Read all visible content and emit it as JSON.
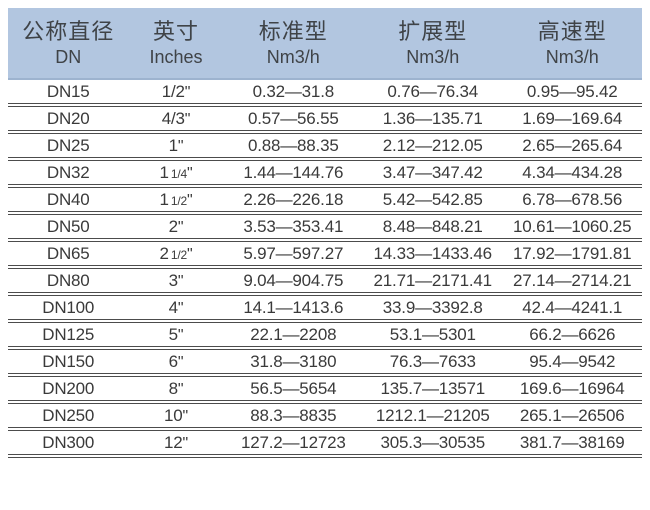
{
  "colors": {
    "header_bg": "#b2c6e0",
    "header_edge": "#9db3cf",
    "header_text": "#3f4347",
    "text": "#3a3a3a",
    "line": "#4c4c4c"
  },
  "table": {
    "inch_mark": "\"",
    "columns": [
      {
        "title": "公称直径",
        "subtitle": "DN"
      },
      {
        "title": "英寸",
        "subtitle": "Inches"
      },
      {
        "title": "标准型",
        "subtitle": "Nm3/h"
      },
      {
        "title": "扩展型",
        "subtitle": "Nm3/h"
      },
      {
        "title": "高速型",
        "subtitle": "Nm3/h"
      }
    ],
    "rows": [
      {
        "dn": "DN15",
        "inches_main": "1/2",
        "inches_frac": "",
        "standard": "0.32—31.8",
        "extended": "0.76—76.34",
        "high_speed": "0.95—95.42"
      },
      {
        "dn": "DN20",
        "inches_main": "4/3",
        "inches_frac": "",
        "standard": "0.57—56.55",
        "extended": "1.36—135.71",
        "high_speed": "1.69—169.64"
      },
      {
        "dn": "DN25",
        "inches_main": "1",
        "inches_frac": "",
        "standard": "0.88—88.35",
        "extended": "2.12—212.05",
        "high_speed": "2.65—265.64"
      },
      {
        "dn": "DN32",
        "inches_main": "1",
        "inches_frac": "1/4",
        "standard": "1.44—144.76",
        "extended": "3.47—347.42",
        "high_speed": "4.34—434.28"
      },
      {
        "dn": "DN40",
        "inches_main": "1",
        "inches_frac": "1/2",
        "standard": "2.26—226.18",
        "extended": "5.42—542.85",
        "high_speed": "6.78—678.56"
      },
      {
        "dn": "DN50",
        "inches_main": "2",
        "inches_frac": "",
        "standard": "3.53—353.41",
        "extended": "8.48—848.21",
        "high_speed": "10.61—1060.25"
      },
      {
        "dn": "DN65",
        "inches_main": "2",
        "inches_frac": "1/2",
        "standard": "5.97—597.27",
        "extended": "14.33—1433.46",
        "high_speed": "17.92—1791.81"
      },
      {
        "dn": "DN80",
        "inches_main": "3",
        "inches_frac": "",
        "standard": "9.04—904.75",
        "extended": "21.71—2171.41",
        "high_speed": "27.14—2714.21"
      },
      {
        "dn": "DN100",
        "inches_main": "4",
        "inches_frac": "",
        "standard": "14.1—1413.6",
        "extended": "33.9—3392.8",
        "high_speed": "42.4—4241.1"
      },
      {
        "dn": "DN125",
        "inches_main": "5",
        "inches_frac": "",
        "standard": "22.1—2208",
        "extended": "53.1—5301",
        "high_speed": "66.2—6626"
      },
      {
        "dn": "DN150",
        "inches_main": "6",
        "inches_frac": "",
        "standard": "31.8—3180",
        "extended": "76.3—7633",
        "high_speed": "95.4—9542"
      },
      {
        "dn": "DN200",
        "inches_main": "8",
        "inches_frac": "",
        "standard": "56.5—5654",
        "extended": "135.7—13571",
        "high_speed": "169.6—16964"
      },
      {
        "dn": "DN250",
        "inches_main": "10",
        "inches_frac": "",
        "standard": "88.3—8835",
        "extended": "1212.1—21205",
        "high_speed": "265.1—26506"
      },
      {
        "dn": "DN300",
        "inches_main": "12",
        "inches_frac": "",
        "standard": "127.2—12723",
        "extended": "305.3—30535",
        "high_speed": "381.7—38169"
      }
    ]
  }
}
